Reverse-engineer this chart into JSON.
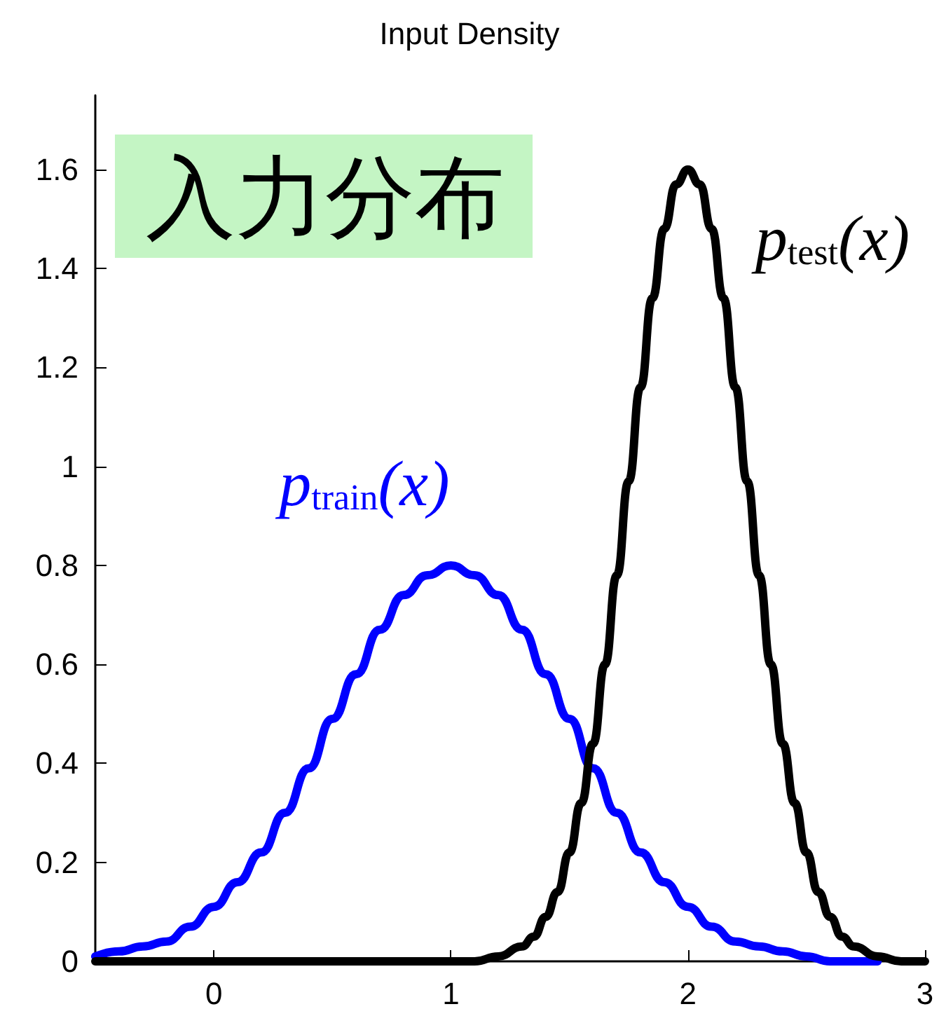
{
  "chart_data": {
    "type": "line",
    "title": "Input Density",
    "series": [
      {
        "name": null,
        "color": "#0000ff",
        "x": [
          -0.5,
          -0.4,
          -0.3,
          -0.2,
          -0.1,
          0,
          0.1,
          0.2,
          0.3,
          0.4,
          0.5,
          0.6,
          0.7,
          0.8,
          0.9,
          1.0,
          1.1,
          1.2,
          1.3,
          1.4,
          1.5,
          1.6,
          1.7,
          1.8,
          1.9,
          2.0,
          2.1,
          2.2,
          2.3,
          2.4,
          2.5,
          2.6,
          2.7,
          2.8
        ],
        "values": [
          0.01,
          0.02,
          0.03,
          0.04,
          0.07,
          0.11,
          0.16,
          0.22,
          0.3,
          0.39,
          0.49,
          0.58,
          0.67,
          0.74,
          0.78,
          0.8,
          0.78,
          0.74,
          0.67,
          0.58,
          0.49,
          0.39,
          0.3,
          0.22,
          0.16,
          0.11,
          0.07,
          0.04,
          0.03,
          0.02,
          0.01,
          0.0,
          0.0,
          0.0
        ]
      },
      {
        "name": null,
        "color": "#000000",
        "x": [
          -0.5,
          0,
          0.5,
          1.0,
          1.1,
          1.2,
          1.3,
          1.35,
          1.4,
          1.45,
          1.5,
          1.55,
          1.6,
          1.65,
          1.7,
          1.75,
          1.8,
          1.85,
          1.9,
          1.95,
          2.0,
          2.05,
          2.1,
          2.15,
          2.2,
          2.25,
          2.3,
          2.35,
          2.4,
          2.45,
          2.5,
          2.55,
          2.6,
          2.65,
          2.7,
          2.8,
          2.9,
          3.0
        ],
        "values": [
          0,
          0,
          0,
          0,
          0.0,
          0.01,
          0.03,
          0.05,
          0.09,
          0.14,
          0.22,
          0.32,
          0.44,
          0.6,
          0.78,
          0.97,
          1.16,
          1.34,
          1.48,
          1.57,
          1.6,
          1.57,
          1.48,
          1.34,
          1.16,
          0.97,
          0.78,
          0.6,
          0.44,
          0.32,
          0.22,
          0.14,
          0.09,
          0.05,
          0.03,
          0.01,
          0.0,
          0
        ]
      }
    ],
    "xlim": [
      -0.5,
      3
    ],
    "xticks": [
      0,
      1,
      2,
      3
    ],
    "ylim": [
      0,
      1.75
    ],
    "yticks": [
      0,
      0.2,
      0.4,
      0.6,
      0.8,
      1,
      1.2,
      1.4,
      1.6
    ],
    "grid": false,
    "marker": "none",
    "line_style": "solid",
    "annotations": [
      "入力分布",
      "p$_{train}$(x)",
      "p$_{test}$(x)"
    ]
  }
}
